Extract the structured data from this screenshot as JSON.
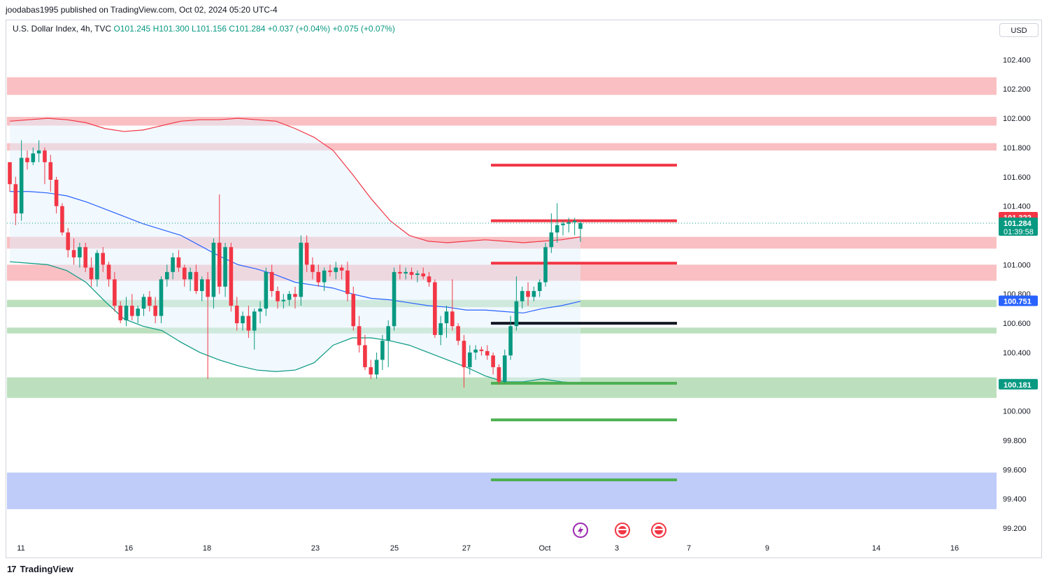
{
  "header": {
    "published_text": "joodabas1995 published on TradingView.com, Oct 02, 2024 05:20 UTC-4"
  },
  "legend": {
    "symbol": "U.S. Dollar Index, 4h, TVC",
    "open": "O101.245",
    "high": "H101.300",
    "low": "L101.156",
    "close": "C101.284",
    "change": "+0.037 (+0.04%)",
    "change2": "+0.075 (+0.07%)"
  },
  "currency_button": "USD",
  "footer": {
    "brand": "TradingView",
    "logo": "17"
  },
  "colors": {
    "up": "#089981",
    "down": "#f23645",
    "resistance_zone": "#f7a9ae",
    "support_zone": "#a5d6a7",
    "blue_zone": "#a9b9f7",
    "bb_upper": "#f23645",
    "bb_mid": "#2962ff",
    "bb_lower": "#089981"
  },
  "chart_data": {
    "type": "candlestick",
    "ylim": [
      99.1,
      102.55
    ],
    "y_ticks": [
      "102.400",
      "102.200",
      "102.000",
      "101.800",
      "101.600",
      "101.400",
      "101.000",
      "100.800",
      "100.600",
      "100.400",
      "100.000",
      "99.800",
      "99.600",
      "99.400",
      "99.200"
    ],
    "x_ticks": [
      "11",
      "16",
      "18",
      "23",
      "25",
      "27",
      "Oct",
      "3",
      "7",
      "9",
      "14",
      "16"
    ],
    "price_labels": [
      {
        "text": "101.322",
        "value": 101.322,
        "color": "#f23645"
      },
      {
        "text": "101.284",
        "value": 101.284,
        "color": "#089981",
        "sub": "01:39:58"
      },
      {
        "text": "100.751",
        "value": 100.751,
        "color": "#2962ff"
      },
      {
        "text": "100.181",
        "value": 100.181,
        "color": "#089981"
      }
    ],
    "zones": [
      {
        "from": 102.16,
        "to": 102.28,
        "color": "resistance"
      },
      {
        "from": 101.95,
        "to": 102.01,
        "color": "resistance"
      },
      {
        "from": 101.78,
        "to": 101.83,
        "color": "resistance"
      },
      {
        "from": 101.11,
        "to": 101.19,
        "color": "resistance"
      },
      {
        "from": 100.89,
        "to": 101.0,
        "color": "resistance"
      },
      {
        "from": 100.71,
        "to": 100.76,
        "color": "support"
      },
      {
        "from": 100.53,
        "to": 100.57,
        "color": "support"
      },
      {
        "from": 100.09,
        "to": 100.23,
        "color": "support"
      },
      {
        "from": 99.33,
        "to": 99.58,
        "color": "blue"
      }
    ],
    "levels": [
      {
        "value": 101.68,
        "color": "#f23645"
      },
      {
        "value": 101.3,
        "color": "#f23645"
      },
      {
        "value": 101.01,
        "color": "#f23645"
      },
      {
        "value": 100.6,
        "color": "#131722"
      },
      {
        "value": 100.19,
        "color": "#4caf50"
      },
      {
        "value": 99.94,
        "color": "#4caf50"
      },
      {
        "value": 99.53,
        "color": "#4caf50"
      }
    ],
    "candles": [
      [
        101.7,
        101.7,
        101.5,
        101.55
      ],
      [
        101.55,
        101.6,
        101.27,
        101.35
      ],
      [
        101.35,
        101.85,
        101.3,
        101.73
      ],
      [
        101.73,
        101.78,
        101.65,
        101.7
      ],
      [
        101.7,
        101.8,
        101.68,
        101.76
      ],
      [
        101.76,
        101.85,
        101.7,
        101.78
      ],
      [
        101.78,
        101.8,
        101.55,
        101.7
      ],
      [
        101.7,
        101.75,
        101.5,
        101.58
      ],
      [
        101.58,
        101.6,
        101.35,
        101.4
      ],
      [
        101.4,
        101.42,
        101.2,
        101.22
      ],
      [
        101.22,
        101.25,
        101.05,
        101.1
      ],
      [
        101.1,
        101.18,
        101.0,
        101.05
      ],
      [
        101.05,
        101.15,
        100.98,
        101.12
      ],
      [
        101.12,
        101.15,
        100.95,
        100.98
      ],
      [
        100.98,
        101.05,
        100.85,
        100.9
      ],
      [
        100.9,
        101.1,
        100.85,
        101.08
      ],
      [
        101.08,
        101.12,
        100.95,
        101.0
      ],
      [
        101.0,
        101.02,
        100.85,
        100.9
      ],
      [
        100.9,
        100.95,
        100.68,
        100.72
      ],
      [
        100.72,
        100.75,
        100.6,
        100.62
      ],
      [
        100.62,
        100.78,
        100.58,
        100.72
      ],
      [
        100.72,
        100.8,
        100.62,
        100.65
      ],
      [
        100.65,
        100.72,
        100.6,
        100.7
      ],
      [
        100.7,
        100.8,
        100.65,
        100.78
      ],
      [
        100.78,
        100.82,
        100.68,
        100.72
      ],
      [
        100.72,
        100.78,
        100.6,
        100.65
      ],
      [
        100.65,
        100.92,
        100.6,
        100.9
      ],
      [
        100.9,
        101.0,
        100.85,
        100.95
      ],
      [
        100.95,
        101.08,
        100.9,
        101.05
      ],
      [
        101.05,
        101.1,
        100.95,
        100.98
      ],
      [
        100.98,
        101.0,
        100.85,
        100.9
      ],
      [
        100.9,
        100.98,
        100.82,
        100.95
      ],
      [
        100.95,
        101.0,
        100.8,
        100.82
      ],
      [
        100.82,
        100.92,
        100.75,
        100.9
      ],
      [
        100.9,
        100.95,
        100.22,
        100.78
      ],
      [
        100.78,
        101.18,
        100.7,
        101.15
      ],
      [
        101.15,
        101.48,
        100.8,
        100.85
      ],
      [
        100.85,
        101.15,
        100.78,
        101.12
      ],
      [
        101.12,
        101.15,
        100.68,
        100.72
      ],
      [
        100.72,
        100.78,
        100.55,
        100.6
      ],
      [
        100.6,
        100.68,
        100.55,
        100.65
      ],
      [
        100.65,
        100.72,
        100.5,
        100.55
      ],
      [
        100.55,
        100.7,
        100.42,
        100.68
      ],
      [
        100.68,
        100.75,
        100.6,
        100.7
      ],
      [
        100.7,
        100.98,
        100.65,
        100.95
      ],
      [
        100.95,
        101.0,
        100.78,
        100.82
      ],
      [
        100.82,
        100.85,
        100.7,
        100.75
      ],
      [
        100.75,
        100.8,
        100.7,
        100.76
      ],
      [
        100.76,
        100.82,
        100.72,
        100.8
      ],
      [
        100.8,
        100.85,
        100.7,
        100.78
      ],
      [
        100.78,
        101.2,
        100.72,
        101.15
      ],
      [
        101.15,
        101.2,
        100.95,
        101.0
      ],
      [
        101.0,
        101.05,
        100.9,
        100.95
      ],
      [
        100.95,
        101.0,
        100.85,
        100.88
      ],
      [
        100.88,
        100.98,
        100.82,
        100.96
      ],
      [
        100.96,
        101.0,
        100.92,
        100.95
      ],
      [
        100.95,
        101.02,
        100.9,
        100.98
      ],
      [
        100.98,
        101.0,
        100.9,
        100.96
      ],
      [
        100.96,
        101.02,
        100.75,
        100.8
      ],
      [
        100.8,
        100.85,
        100.55,
        100.58
      ],
      [
        100.58,
        100.65,
        100.4,
        100.45
      ],
      [
        100.45,
        100.52,
        100.28,
        100.3
      ],
      [
        100.3,
        100.35,
        100.22,
        100.25
      ],
      [
        100.25,
        100.4,
        100.22,
        100.35
      ],
      [
        100.35,
        100.52,
        100.28,
        100.48
      ],
      [
        100.48,
        100.62,
        100.3,
        100.58
      ],
      [
        100.58,
        100.98,
        100.55,
        100.95
      ],
      [
        100.95,
        101.0,
        100.9,
        100.94
      ],
      [
        100.94,
        100.98,
        100.9,
        100.95
      ],
      [
        100.95,
        100.98,
        100.9,
        100.93
      ],
      [
        100.93,
        100.96,
        100.88,
        100.94
      ],
      [
        100.94,
        100.98,
        100.9,
        100.92
      ],
      [
        100.92,
        100.95,
        100.85,
        100.88
      ],
      [
        100.88,
        100.9,
        100.5,
        100.52
      ],
      [
        100.52,
        100.65,
        100.45,
        100.6
      ],
      [
        100.6,
        100.72,
        100.5,
        100.68
      ],
      [
        100.68,
        100.9,
        100.55,
        100.58
      ],
      [
        100.58,
        100.6,
        100.45,
        100.48
      ],
      [
        100.48,
        100.52,
        100.16,
        100.3
      ],
      [
        100.3,
        100.45,
        100.25,
        100.4
      ],
      [
        100.4,
        100.45,
        100.35,
        100.42
      ],
      [
        100.42,
        100.44,
        100.38,
        100.41
      ],
      [
        100.41,
        100.45,
        100.35,
        100.38
      ],
      [
        100.38,
        100.4,
        100.25,
        100.3
      ],
      [
        100.3,
        100.32,
        100.18,
        100.2
      ],
      [
        100.2,
        100.42,
        100.19,
        100.38
      ],
      [
        100.38,
        100.65,
        100.35,
        100.58
      ],
      [
        100.58,
        100.92,
        100.55,
        100.75
      ],
      [
        100.75,
        100.85,
        100.7,
        100.82
      ],
      [
        100.82,
        100.88,
        100.72,
        100.78
      ],
      [
        100.78,
        100.85,
        100.75,
        100.82
      ],
      [
        100.82,
        100.9,
        100.78,
        100.88
      ],
      [
        100.88,
        101.15,
        100.85,
        101.12
      ],
      [
        101.12,
        101.35,
        101.08,
        101.22
      ],
      [
        101.22,
        101.42,
        101.15,
        101.27
      ],
      [
        101.27,
        101.3,
        101.2,
        101.28
      ],
      [
        101.28,
        101.32,
        101.22,
        101.29
      ],
      [
        101.29,
        101.32,
        101.2,
        101.3
      ],
      [
        101.245,
        101.3,
        101.156,
        101.284
      ]
    ],
    "bb_upper": [
      101.98,
      101.99,
      102.0,
      101.99,
      101.97,
      101.93,
      101.91,
      101.92,
      101.95,
      101.98,
      101.99,
      101.99,
      102.0,
      101.99,
      101.98,
      101.93,
      101.87,
      101.78,
      101.62,
      101.45,
      101.3,
      101.2,
      101.16,
      101.15,
      101.16,
      101.17,
      101.16,
      101.15,
      101.16,
      101.17,
      101.19
    ],
    "bb_mid": [
      101.5,
      101.5,
      101.49,
      101.47,
      101.43,
      101.38,
      101.33,
      101.28,
      101.24,
      101.2,
      101.13,
      101.06,
      101.0,
      100.97,
      100.93,
      100.88,
      100.86,
      100.84,
      100.8,
      100.77,
      100.76,
      100.74,
      100.72,
      100.71,
      100.69,
      100.69,
      100.68,
      100.67,
      100.7,
      100.72,
      100.75
    ],
    "bb_lower": [
      101.02,
      101.01,
      101.0,
      100.96,
      100.88,
      100.75,
      100.63,
      100.58,
      100.55,
      100.47,
      100.4,
      100.35,
      100.31,
      100.28,
      100.27,
      100.28,
      100.33,
      100.45,
      100.5,
      100.5,
      100.48,
      100.45,
      100.4,
      100.35,
      100.3,
      100.24,
      100.2,
      100.2,
      100.22,
      100.2,
      100.19
    ]
  }
}
